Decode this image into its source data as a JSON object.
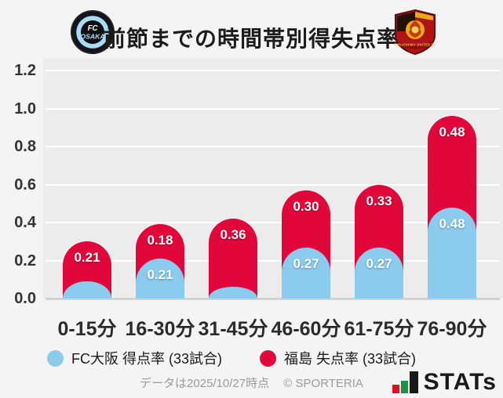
{
  "header": {
    "title": "前節までの時間帯別得失点率",
    "left_badge": {
      "team": "FC大阪",
      "line1": "FC",
      "line2": "OSAKA"
    },
    "right_badge": {
      "team": "福島ユナイテッドFC",
      "banner": "FUKUSHIMA UNITED FC"
    }
  },
  "chart_data": {
    "type": "bar",
    "subtype": "stacked-rounded-pill",
    "title": "前節までの時間帯別得失点率",
    "categories": [
      "0-15分",
      "16-30分",
      "31-45分",
      "46-60分",
      "61-75分",
      "76-90分"
    ],
    "series": [
      {
        "name": "FC大阪 得点率 (33試合)",
        "color": "#8acbee",
        "values": [
          0.09,
          0.21,
          0.06,
          0.27,
          0.27,
          0.48
        ],
        "labels": [
          "",
          "0.21",
          "",
          "0.27",
          "0.27",
          "0.48"
        ]
      },
      {
        "name": "福島 失点率 (33試合)",
        "color": "#e2073a",
        "values": [
          0.21,
          0.18,
          0.36,
          0.3,
          0.33,
          0.48
        ],
        "labels": [
          "0.21",
          "0.18",
          "0.36",
          "0.30",
          "0.33",
          "0.48"
        ]
      }
    ],
    "stacked": true,
    "ylim": [
      0,
      1.2
    ],
    "yticks": [
      "0.0",
      "0.2",
      "0.4",
      "0.6",
      "0.8",
      "1.0",
      "1.2"
    ],
    "grid": true,
    "gridline_color": "#ffffff",
    "baseline_color": "#d2d2d2",
    "plot_background": "#ececec",
    "value_label_color": "#ffffff",
    "legend_position": "bottom"
  },
  "footer": {
    "note": "データは2025/10/27時点",
    "copyright": "© SPORTERIA",
    "brand": "STATs",
    "brand_bar_colors": [
      "#dd1125",
      "#11973c",
      "#191919"
    ]
  }
}
